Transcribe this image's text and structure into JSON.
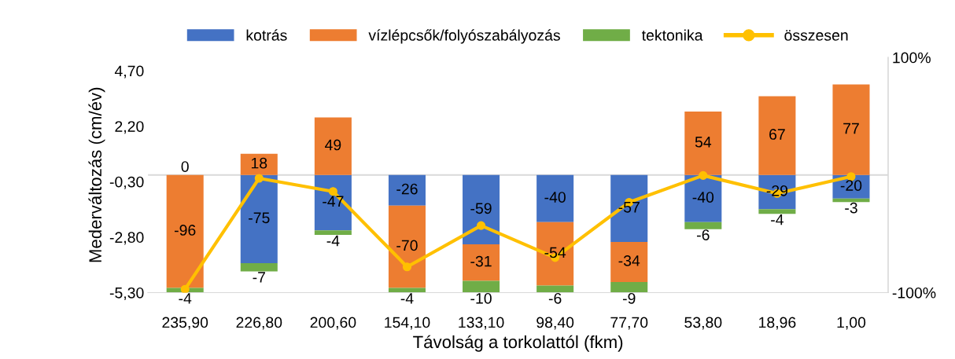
{
  "chart_data": {
    "type": "bar",
    "stacked": true,
    "xlabel": "Távolság a torkolattól (fkm)",
    "ylabel": "Mederváltozás (cm/év)",
    "categories": [
      "235,90",
      "226,80",
      "200,60",
      "154,10",
      "133,10",
      "98,40",
      "77,70",
      "53,80",
      "18,96",
      "1,00"
    ],
    "series": [
      {
        "name": "kotrás",
        "color": "#4472c4",
        "axis": "y2",
        "values": [
          0,
          -75,
          -47,
          -26,
          -59,
          -40,
          -57,
          -40,
          -29,
          -20
        ],
        "value_labels": [
          "0",
          "-75",
          "-47",
          "-26",
          "-59",
          "-40",
          "-57",
          "-40",
          "-29",
          "-20"
        ]
      },
      {
        "name": "vízlépcsők/folyószabályozás",
        "color": "#ed7d31",
        "axis": "y2",
        "values": [
          -96,
          18,
          49,
          -70,
          -31,
          -54,
          -34,
          54,
          67,
          77
        ],
        "value_labels": [
          "-96",
          "18",
          "49",
          "-70",
          "-31",
          "-54",
          "-34",
          "54",
          "67",
          "77"
        ]
      },
      {
        "name": "tektonika",
        "color": "#70ad47",
        "axis": "y2",
        "values": [
          -4,
          -7,
          -4,
          -4,
          -10,
          -6,
          -9,
          -6,
          -4,
          -3
        ],
        "value_labels": [
          "-4",
          "-7",
          "-4",
          "-4",
          "-10",
          "-6",
          "-9",
          "-6",
          "-4",
          "-3"
        ]
      },
      {
        "name": "összesen",
        "type": "line",
        "color": "#ffc000",
        "marker": "circle",
        "line_style": "solid",
        "values": [
          -5.15,
          -0.15,
          -0.74,
          -4.14,
          -2.28,
          -3.72,
          -1.23,
          -0.02,
          -0.83,
          -0.07
        ]
      }
    ],
    "ylim": [
      -5.3,
      5.3
    ],
    "yticks": [
      {
        "value": -5.3,
        "label": "-5,30"
      },
      {
        "value": -2.8,
        "label": "-2,80"
      },
      {
        "value": -0.3,
        "label": "-0,30"
      },
      {
        "value": 2.2,
        "label": "2,20"
      },
      {
        "value": 4.7,
        "label": "4,70"
      }
    ],
    "y2lim": [
      -100,
      100
    ],
    "y2ticks": [
      {
        "value": -100,
        "label": "-100%"
      },
      {
        "value": 100,
        "label": "100%"
      }
    ],
    "ref_lines": [
      {
        "axis": "y2",
        "value": 0,
        "color": "#d9d9d9"
      }
    ],
    "legend": "top",
    "grid": false
  }
}
